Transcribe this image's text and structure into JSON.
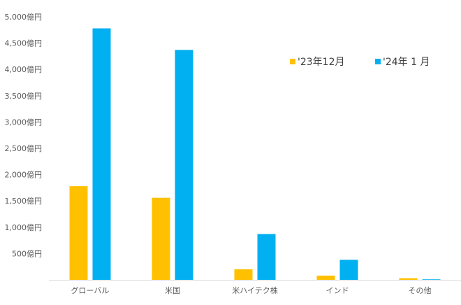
{
  "chart_data": {
    "type": "bar",
    "categories": [
      "グローバル",
      "米国",
      "米ハイテク株",
      "インド",
      "その他"
    ],
    "series": [
      {
        "name": "'23年12月",
        "color": "#FFC000",
        "values": [
          1780,
          1560,
          200,
          80,
          30
        ]
      },
      {
        "name": "'24年 1 月",
        "color": "#00B0F0",
        "values": [
          4780,
          4370,
          870,
          380,
          10
        ]
      }
    ],
    "ylim": [
      0,
      5000
    ],
    "yticks": [
      {
        "value": 500,
        "label": "500億円"
      },
      {
        "value": 1000,
        "label": "1,000億円"
      },
      {
        "value": 1500,
        "label": "1,500億円"
      },
      {
        "value": 2000,
        "label": "2,000億円"
      },
      {
        "value": 2500,
        "label": "2,500億円"
      },
      {
        "value": 3000,
        "label": "3,000億円"
      },
      {
        "value": 3500,
        "label": "3,500億円"
      },
      {
        "value": 4000,
        "label": "4,000億円"
      },
      {
        "value": 4500,
        "label": "4,500億円"
      },
      {
        "value": 5000,
        "label": "5,000億円"
      }
    ],
    "grid": false,
    "legend_position": "top-right",
    "axis_color": "#D9D9D9"
  }
}
